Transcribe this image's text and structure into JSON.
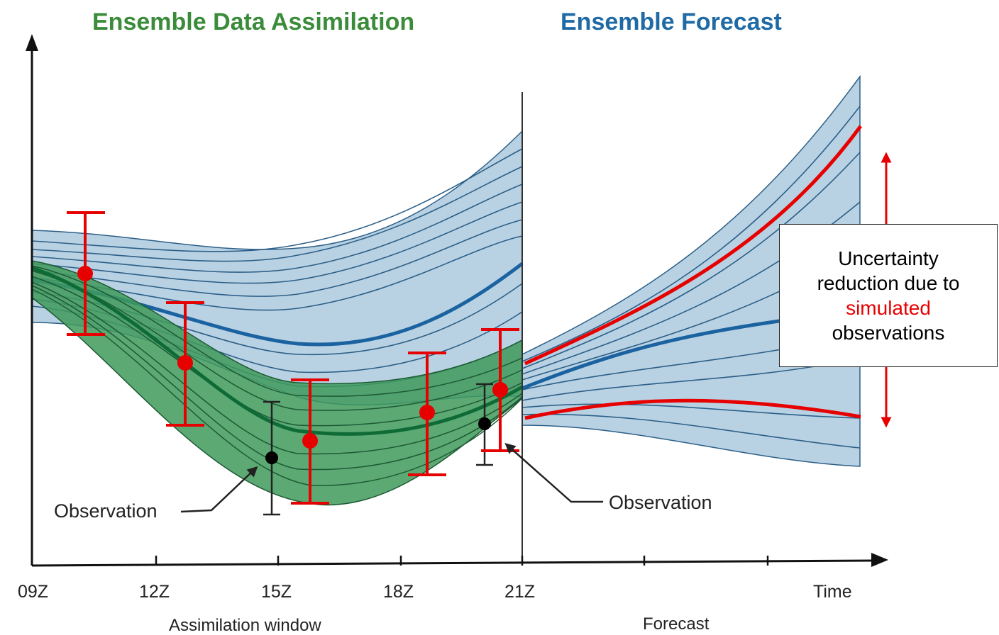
{
  "headers": {
    "assimilation": "Ensemble Data Assimilation",
    "forecast": "Ensemble Forecast"
  },
  "x_ticks": [
    "09Z",
    "12Z",
    "15Z",
    "18Z",
    "21Z",
    "Time"
  ],
  "x_labels": {
    "window": "Assimilation window",
    "forecast": "Forecast"
  },
  "annotations": {
    "observation_left": "Observation",
    "observation_right": "Observation"
  },
  "callout": {
    "line1": "Uncertainty",
    "line2": "reduction due to",
    "line3_highlight": "simulated",
    "line4": "observations"
  },
  "colors": {
    "assimilation_header": "#3a8c3a",
    "forecast_header": "#1f6aa5",
    "blue_spread": "#b9d2e3",
    "blue_member": "#2c5f88",
    "blue_mean": "#1a62a0",
    "green_spread": "#3f9a5c",
    "green_member": "#1d5a33",
    "green_mean": "#0f6b36",
    "simulated_obs": "#e60000",
    "observation": "#000000"
  }
}
